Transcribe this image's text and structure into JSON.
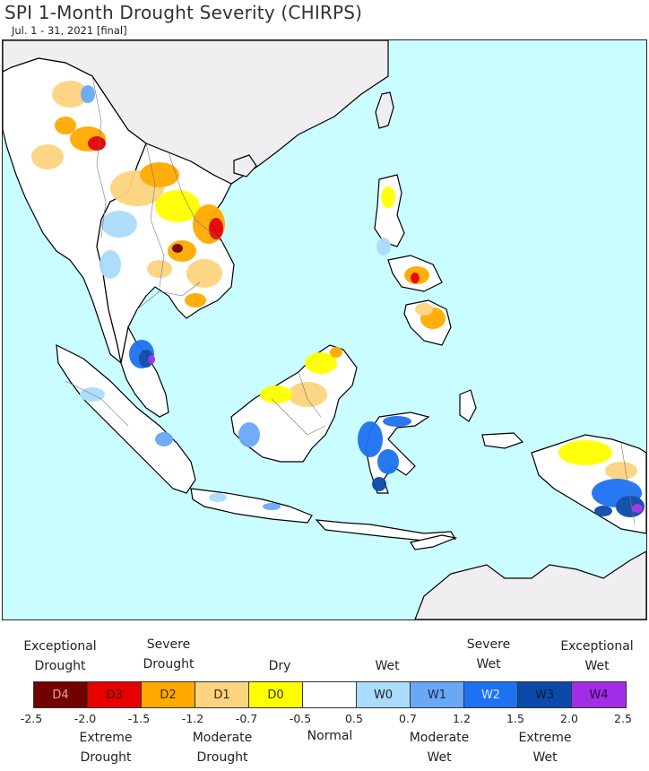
{
  "title": "SPI 1-Month Drought Severity (CHIRPS)",
  "subtitle": "Jul. 1 - 31, 2021 [final]",
  "colors": {
    "ocean": "#c9fdff",
    "land": "#ffffff",
    "outside_land": "#f1eef2",
    "D4": "#730000",
    "D3": "#e60000",
    "D2": "#ffaa00",
    "D1": "#fcd37f",
    "D0": "#ffff00",
    "normal": "#ffffff",
    "W0": "#aadcfb",
    "W1": "#69a8f5",
    "W2": "#1d72f1",
    "W3": "#0b4aa8",
    "W4": "#a12ee6"
  },
  "legend": {
    "top_labels": [
      {
        "line1": "Exceptional",
        "line2": "Drought"
      },
      {
        "line1": "Severe",
        "line2": "Drought"
      },
      {
        "line1": "",
        "line2": "Dry"
      },
      {
        "line1": "",
        "line2": "Wet"
      },
      {
        "line1": "Severe",
        "line2": "Wet"
      },
      {
        "line1": "Exceptional",
        "line2": "Wet"
      }
    ],
    "bottom_labels": [
      {
        "line1": "Extreme",
        "line2": "Drought"
      },
      {
        "line1": "Moderate",
        "line2": "Drought"
      },
      {
        "line1": "Normal",
        "line2": ""
      },
      {
        "line1": "Moderate",
        "line2": "Wet"
      },
      {
        "line1": "Extreme",
        "line2": "Wet"
      }
    ],
    "categories": [
      {
        "label": "D4",
        "color": "#730000",
        "text_color": "#e6a0a0"
      },
      {
        "label": "D3",
        "color": "#e60000",
        "text_color": "#4a0000"
      },
      {
        "label": "D2",
        "color": "#ffaa00",
        "text_color": "#3a2a00"
      },
      {
        "label": "D1",
        "color": "#fcd37f",
        "text_color": "#3a2a00"
      },
      {
        "label": "D0",
        "color": "#ffff00",
        "text_color": "#3a3a00"
      },
      {
        "label": "",
        "color": "#ffffff",
        "text_color": "#222222"
      },
      {
        "label": "W0",
        "color": "#aadcfb",
        "text_color": "#222222"
      },
      {
        "label": "W1",
        "color": "#69a8f5",
        "text_color": "#1a2a4a"
      },
      {
        "label": "W2",
        "color": "#1d72f1",
        "text_color": "#dde8ff"
      },
      {
        "label": "W3",
        "color": "#0b4aa8",
        "text_color": "#0a1a3a"
      },
      {
        "label": "W4",
        "color": "#a12ee6",
        "text_color": "#2a0040"
      }
    ],
    "ticks": [
      "-2.5",
      "-2.0",
      "-1.5",
      "-1.2",
      "-0.7",
      "-0.5",
      "0.5",
      "0.7",
      "1.2",
      "1.5",
      "2.0",
      "2.5"
    ]
  }
}
